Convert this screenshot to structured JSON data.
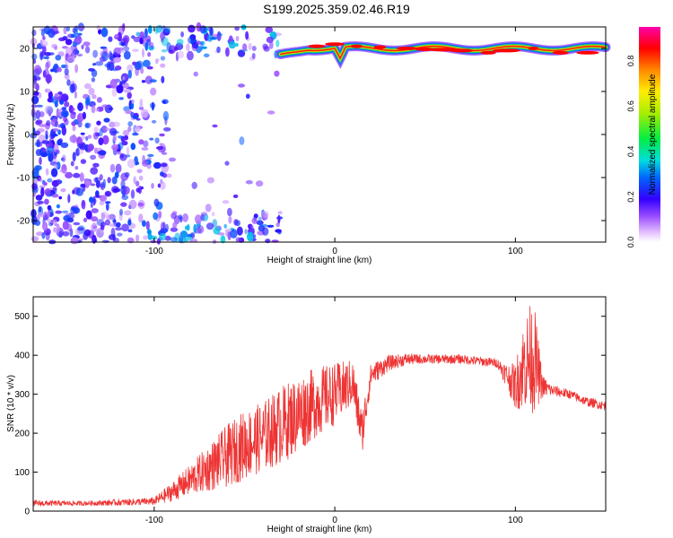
{
  "title": "S199.2025.359.02.46.R19",
  "chart_data": [
    {
      "type": "heatmap",
      "xlabel": "Height of straight line (km)",
      "ylabel": "Frequency (Hz)",
      "xlim": [
        -167,
        150
      ],
      "ylim": [
        -25,
        25
      ],
      "xticks": [
        -100,
        0,
        100
      ],
      "yticks": [
        -20,
        -10,
        0,
        10,
        20
      ],
      "colorbar": {
        "label": "Normalized spectral amplitude",
        "range": [
          0,
          0.95
        ],
        "ticks": [
          0.0,
          0.2,
          0.4,
          0.6,
          0.8
        ]
      },
      "signal_band": {
        "frequency_hz": 20,
        "start_km": -30,
        "end_km": 150,
        "peak_amplitude": 0.9
      },
      "noise_region": {
        "x_range_km": [
          -167,
          -30
        ],
        "amplitude_range": [
          0.05,
          0.3
        ]
      }
    },
    {
      "type": "line",
      "xlabel": "Height of straight line (km)",
      "ylabel": "SNR (10 * v/v)",
      "xlim": [
        -167,
        150
      ],
      "ylim": [
        0,
        550
      ],
      "xticks": [
        -100,
        0,
        100
      ],
      "yticks": [
        0,
        100,
        200,
        300,
        400,
        500
      ],
      "color": "#ee3333",
      "series": [
        {
          "x": [
            -167,
            -140,
            -120,
            -100,
            -90,
            -80,
            -70,
            -60,
            -50,
            -40,
            -30,
            -20,
            -10,
            0,
            10,
            15,
            20,
            30,
            40,
            50,
            60,
            70,
            80,
            90,
            95,
            100,
            105,
            110,
            115,
            120,
            130,
            140,
            150
          ],
          "values": [
            20,
            20,
            22,
            25,
            50,
            80,
            110,
            140,
            170,
            190,
            220,
            250,
            280,
            300,
            330,
            200,
            350,
            380,
            390,
            390,
            390,
            390,
            385,
            380,
            350,
            320,
            380,
            400,
            320,
            310,
            300,
            280,
            270
          ],
          "spread": [
            8,
            6,
            8,
            10,
            25,
            40,
            60,
            80,
            90,
            90,
            100,
            100,
            90,
            80,
            60,
            60,
            30,
            20,
            15,
            12,
            12,
            12,
            12,
            12,
            30,
            60,
            120,
            150,
            30,
            15,
            12,
            12,
            12
          ]
        }
      ]
    }
  ]
}
